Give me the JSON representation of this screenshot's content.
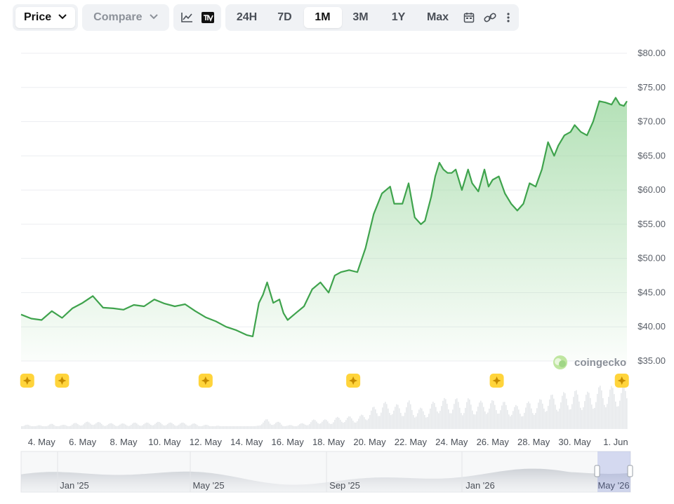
{
  "toolbar": {
    "price_label": "Price",
    "compare_label": "Compare",
    "ranges": [
      "24H",
      "7D",
      "1M",
      "3M",
      "1Y",
      "Max"
    ],
    "active_range": "1M"
  },
  "watermark": "coingecko",
  "colors": {
    "line": "#3fa34d",
    "fill": "#9bd79f",
    "grid": "#eceef1",
    "volume": "#e6e8eb",
    "marker": "#ffd43b"
  },
  "chart_data": {
    "type": "area",
    "ylim": [
      35,
      80
    ],
    "y_ticks": [
      "$80.00",
      "$75.00",
      "$70.00",
      "$65.00",
      "$60.00",
      "$55.00",
      "$50.00",
      "$45.00",
      "$40.00",
      "$35.00"
    ],
    "x_ticks": [
      "4. May",
      "6. May",
      "8. May",
      "10. May",
      "12. May",
      "14. May",
      "16. May",
      "18. May",
      "20. May",
      "22. May",
      "24. May",
      "26. May",
      "28. May",
      "30. May",
      "1. Jun"
    ],
    "x_day_range": [
      3.0,
      32.55
    ],
    "series": [
      {
        "x": [
          3.0,
          3.5,
          4.0,
          4.5,
          5.0,
          5.5,
          6.0,
          6.5,
          7.0,
          7.5,
          8.0,
          8.5,
          9.0,
          9.5,
          10.0,
          10.5,
          11.0,
          11.5,
          12.0,
          12.5,
          13.0,
          13.5,
          14.0,
          14.3,
          14.6,
          14.8,
          15.0,
          15.3,
          15.6,
          15.8,
          16.0,
          16.4,
          16.8,
          17.2,
          17.6,
          18.0,
          18.3,
          18.6,
          19.0,
          19.4,
          19.8,
          20.2,
          20.6,
          21.0,
          21.2,
          21.6,
          21.9,
          22.2,
          22.5,
          22.7,
          23.0,
          23.2,
          23.4,
          23.6,
          23.8,
          24.0,
          24.2,
          24.5,
          24.8,
          25.0,
          25.3,
          25.6,
          25.8,
          26.0,
          26.3,
          26.6,
          26.9,
          27.2,
          27.5,
          27.8,
          28.1,
          28.4,
          28.7,
          29.0,
          29.2,
          29.5,
          29.8,
          30.0,
          30.3,
          30.6,
          30.9,
          31.2,
          31.5,
          31.8,
          32.0,
          32.2,
          32.4,
          32.55
        ],
        "y": [
          41.8,
          41.2,
          41.0,
          42.3,
          41.3,
          42.7,
          43.5,
          44.5,
          42.8,
          42.7,
          42.5,
          43.2,
          43.0,
          44.0,
          43.4,
          43.0,
          43.3,
          42.3,
          41.4,
          40.8,
          40.0,
          39.5,
          38.8,
          38.6,
          43.5,
          44.7,
          46.5,
          43.5,
          44.0,
          42.0,
          41.0,
          42.0,
          43.0,
          45.5,
          46.5,
          45.0,
          47.5,
          48.0,
          48.3,
          48.0,
          51.5,
          56.5,
          59.5,
          60.5,
          58.0,
          58.0,
          61.0,
          56.0,
          55.0,
          55.5,
          59.0,
          62.0,
          64.0,
          63.0,
          62.5,
          62.5,
          63.0,
          60.0,
          63.0,
          61.0,
          59.8,
          63.0,
          60.5,
          61.5,
          62.0,
          59.5,
          58.0,
          57.0,
          58.0,
          61.0,
          60.5,
          63.0,
          67.0,
          65.0,
          66.5,
          68.0,
          68.5,
          69.5,
          68.5,
          68.0,
          70.0,
          73.0,
          72.8,
          72.5,
          73.5,
          72.5,
          72.3,
          73.0
        ]
      }
    ],
    "event_marker_days": [
      3.3,
      5.0,
      12.0,
      19.2,
      26.2,
      32.3
    ],
    "navigator_labels": [
      "Jan '25",
      "May '25",
      "Sep '25",
      "Jan '26",
      "May '26"
    ]
  }
}
